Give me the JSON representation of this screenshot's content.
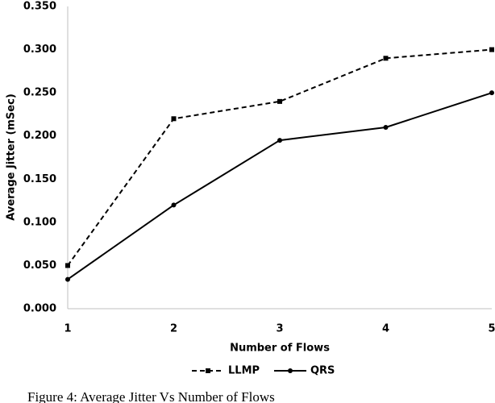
{
  "chart_data": {
    "type": "line",
    "x_label": "Number of Flows",
    "y_label": "Average Jitter (mSec)",
    "caption": "Figure 4: Average Jitter Vs Number of Flows",
    "categories": [
      "1",
      "2",
      "3",
      "4",
      "5"
    ],
    "series": [
      {
        "name": "LLMP",
        "color": "#000000",
        "line_style": "dashed",
        "values": [
          0.05,
          0.22,
          0.24,
          0.29,
          0.3
        ]
      },
      {
        "name": "QRS",
        "color": "#000000",
        "line_style": "solid",
        "values": [
          0.034,
          0.12,
          0.195,
          0.21,
          0.25
        ]
      }
    ],
    "ylim": [
      0,
      0.35
    ],
    "yticks": [
      {
        "value": 0,
        "label": "0.000"
      },
      {
        "value": 0.05,
        "label": "0.050"
      },
      {
        "value": 0.1,
        "label": "0.100"
      },
      {
        "value": 0.15,
        "label": "0.150"
      },
      {
        "value": 0.2,
        "label": "0.200"
      },
      {
        "value": 0.25,
        "label": "0.250"
      },
      {
        "value": 0.3,
        "label": "0.300"
      },
      {
        "value": 0.35,
        "label": "0.350"
      }
    ],
    "grid": false
  }
}
